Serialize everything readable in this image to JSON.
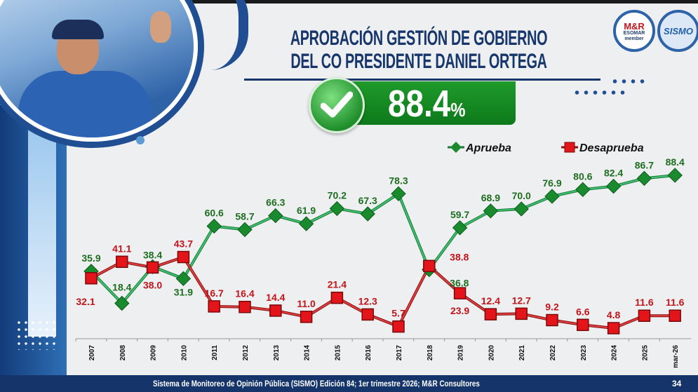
{
  "header": {
    "title_line1": "APROBACIÓN GESTIÓN DE GOBIERNO",
    "title_line2": "DEL CO PRESIDENTE DANIEL ORTEGA",
    "headline_value": "88.4",
    "headline_unit": "%",
    "check_icon": "check-icon",
    "logos": [
      "M&R Consultores ESOMAR member",
      "SISMO"
    ]
  },
  "footer": {
    "source": "Sistema de Monitoreo de Opinión Pública (SISMO) Edición 84; 1er trimestre 2026; M&R Consultores",
    "page_number": "34"
  },
  "colors": {
    "aprueba": "#1f9a3a",
    "desaprueba": "#cc1a1a",
    "title": "#17366b",
    "footer": "#15356a"
  },
  "chart_data": {
    "type": "line",
    "categories": [
      "2007",
      "2008",
      "2009",
      "2010",
      "2011",
      "2012",
      "2013",
      "2014",
      "2015",
      "2016",
      "2017",
      "2018",
      "2019",
      "2020",
      "2021",
      "2022",
      "2023",
      "2024",
      "2025",
      "mar-26"
    ],
    "series": [
      {
        "name": "Aprueba",
        "marker": "diamond",
        "color": "#1f9a3a",
        "values": [
          35.9,
          18.4,
          38.4,
          31.9,
          60.6,
          58.7,
          66.3,
          61.9,
          70.2,
          67.3,
          78.3,
          36.8,
          59.7,
          68.9,
          70.0,
          76.9,
          80.6,
          82.4,
          86.7,
          88.4
        ]
      },
      {
        "name": "Desaprueba",
        "marker": "square",
        "color": "#cc1a1a",
        "values": [
          32.1,
          41.1,
          38.0,
          43.7,
          16.7,
          16.4,
          14.4,
          11.0,
          21.4,
          12.3,
          5.7,
          38.8,
          23.9,
          12.4,
          12.7,
          9.2,
          6.6,
          4.8,
          11.6,
          11.6
        ]
      }
    ],
    "legend": "top-right",
    "grid": false,
    "ylim": [
      0,
      90
    ],
    "data_labels": true
  }
}
